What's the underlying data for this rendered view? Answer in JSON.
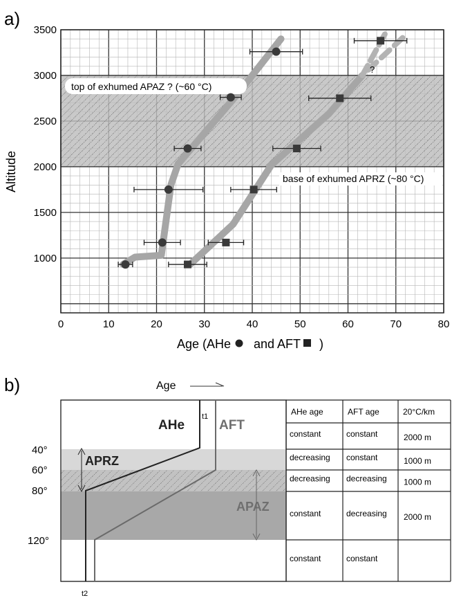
{
  "chart_data": [
    {
      "type": "scatter",
      "panel_label": "a)",
      "xlabel_prefix": "Age (AHe",
      "xlabel_mid": "and AFT",
      "xlabel_suffix": ")",
      "ylabel": "Altitude",
      "xlim": [
        0,
        80
      ],
      "ylim": [
        400,
        3500
      ],
      "x_ticks": [
        0,
        10,
        20,
        30,
        40,
        50,
        60,
        70,
        80
      ],
      "y_ticks": [
        1000,
        1500,
        2000,
        2500,
        3000,
        3500
      ],
      "grid": true,
      "hatched_band": {
        "y_from": 2000,
        "y_to": 3000
      },
      "annotations": {
        "top": "top of exhumed APAZ ? (~60 °C)",
        "base": "base of exhumed APRZ (~80 °C)",
        "question": "?"
      },
      "series": [
        {
          "marker": "circle",
          "points": [
            {
              "x": 13.5,
              "y": 930,
              "err": 1.5
            },
            {
              "x": 21.2,
              "y": 1170,
              "err": 3.8
            },
            {
              "x": 22.5,
              "y": 1750,
              "err": 7.2
            },
            {
              "x": 26.5,
              "y": 2200,
              "err": 2.8
            },
            {
              "x": 35.5,
              "y": 2760,
              "err": 2.2
            },
            {
              "x": 45.0,
              "y": 3260,
              "err": 5.5
            }
          ],
          "trend": [
            [
              13,
              930
            ],
            [
              15.5,
              1010
            ],
            [
              21,
              1030
            ],
            [
              23,
              1800
            ],
            [
              24.5,
              2030
            ],
            [
              37,
              2800
            ],
            [
              46,
              3400
            ]
          ]
        },
        {
          "marker": "square",
          "points": [
            {
              "x": 26.5,
              "y": 930,
              "err": 4.0
            },
            {
              "x": 34.5,
              "y": 1170,
              "err": 3.7
            },
            {
              "x": 40.3,
              "y": 1750,
              "err": 4.8
            },
            {
              "x": 49.3,
              "y": 2200,
              "err": 5.0
            },
            {
              "x": 58.3,
              "y": 2750,
              "err": 6.5
            },
            {
              "x": 66.8,
              "y": 3380,
              "err": 5.5
            }
          ],
          "trend": [
            [
              27,
              930
            ],
            [
              36,
              1370
            ],
            [
              44,
              2020
            ],
            [
              56,
              2580
            ],
            [
              63,
              3000
            ]
          ],
          "trend_dashed": [
            [
              63,
              3000
            ],
            [
              68,
              3480
            ],
            [
              63,
              3000
            ],
            [
              72,
              3440
            ]
          ]
        }
      ]
    },
    {
      "type": "table",
      "panel_label": "b)",
      "age_axis_label": "Age",
      "zones": {
        "ahe": "AHe",
        "aft": "AFT",
        "aprz": "APRZ",
        "apaz": "APAZ"
      },
      "time_labels": {
        "t1": "t1",
        "t2": "t2"
      },
      "temperatures": [
        "40°",
        "60°",
        "80°",
        "120°"
      ],
      "columns": [
        "AHe age",
        "AFT age",
        "20°C/km"
      ],
      "rows": [
        [
          "constant",
          "constant",
          "2000 m"
        ],
        [
          "decreasing",
          "constant",
          "1000 m"
        ],
        [
          "decreasing",
          "decreasing",
          "1000  m"
        ],
        [
          "constant",
          "decreasing",
          "2000 m"
        ],
        [
          "constant",
          "constant",
          ""
        ]
      ]
    }
  ]
}
